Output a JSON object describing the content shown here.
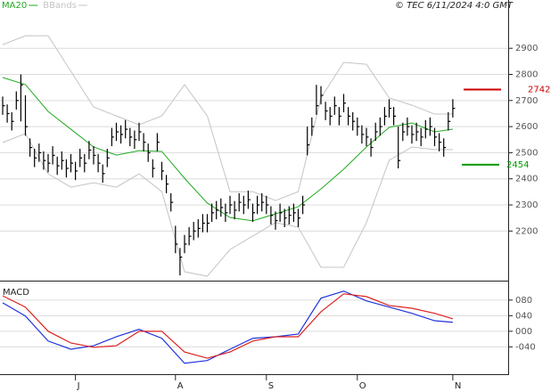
{
  "chart_data": [
    {
      "type": "ohlc",
      "source": "© TEC 6/11/2024 4:0 GMT",
      "color": "#000000",
      "categories": [
        null,
        null,
        null,
        null,
        null,
        null,
        null,
        null,
        null,
        null,
        null,
        null,
        null,
        null,
        null,
        null,
        "J",
        null,
        null,
        null,
        null,
        null,
        null,
        null,
        null,
        null,
        null,
        null,
        null,
        null,
        null,
        null,
        null,
        null,
        null,
        null,
        null,
        null,
        "A",
        null,
        null,
        null,
        null,
        null,
        null,
        null,
        null,
        null,
        null,
        null,
        null,
        null,
        null,
        null,
        null,
        null,
        null,
        null,
        "S",
        null,
        null,
        null,
        null,
        null,
        null,
        null,
        null,
        null,
        null,
        null,
        null,
        null,
        null,
        null,
        null,
        null,
        null,
        null,
        "O",
        null,
        null,
        null,
        null,
        null,
        null,
        null,
        null,
        null,
        null,
        null,
        null,
        null,
        null,
        null,
        null,
        null,
        null,
        null,
        null,
        "N"
      ],
      "high": [
        2715,
        2685,
        2655,
        2735,
        2800,
        2720,
        2555,
        2515,
        2535,
        2505,
        2495,
        2525,
        2485,
        2505,
        2475,
        2495,
        2465,
        2515,
        2495,
        2545,
        2525,
        2495,
        2455,
        2515,
        2595,
        2615,
        2605,
        2625,
        2595,
        2585,
        2615,
        2575,
        2535,
        2475,
        2575,
        2465,
        2415,
        2345,
        2220,
        2135,
        2185,
        2215,
        2235,
        2245,
        2265,
        2265,
        2305,
        2315,
        2325,
        2305,
        2335,
        2315,
        2345,
        2335,
        2355,
        2305,
        2335,
        2345,
        2335,
        2295,
        2275,
        2305,
        2285,
        2295,
        2305,
        2285,
        2335,
        2600,
        2635,
        2760,
        2755,
        2695,
        2675,
        2715,
        2675,
        2725,
        2675,
        2655,
        2635,
        2605,
        2595,
        2555,
        2615,
        2635,
        2675,
        2705,
        2675,
        2600,
        2615,
        2635,
        2605,
        2615,
        2595,
        2625,
        2635,
        2595,
        2575,
        2555,
        2655,
        2705
      ],
      "low": [
        2645,
        2615,
        2585,
        2665,
        2620,
        2565,
        2485,
        2445,
        2465,
        2435,
        2425,
        2455,
        2415,
        2435,
        2405,
        2425,
        2395,
        2445,
        2425,
        2475,
        2455,
        2425,
        2385,
        2445,
        2525,
        2545,
        2535,
        2555,
        2525,
        2515,
        2545,
        2505,
        2465,
        2405,
        2505,
        2395,
        2345,
        2275,
        2115,
        2030,
        2115,
        2145,
        2165,
        2175,
        2195,
        2195,
        2235,
        2245,
        2255,
        2235,
        2265,
        2245,
        2275,
        2265,
        2285,
        2235,
        2265,
        2275,
        2265,
        2225,
        2205,
        2235,
        2215,
        2225,
        2235,
        2215,
        2265,
        2490,
        2565,
        2645,
        2685,
        2625,
        2605,
        2645,
        2605,
        2655,
        2605,
        2585,
        2565,
        2535,
        2525,
        2485,
        2545,
        2565,
        2605,
        2635,
        2605,
        2440,
        2545,
        2565,
        2535,
        2545,
        2525,
        2555,
        2565,
        2525,
        2505,
        2485,
        2585,
        2635
      ],
      "close": [
        2680,
        2650,
        2620,
        2700,
        2760,
        2600,
        2520,
        2480,
        2500,
        2470,
        2460,
        2490,
        2450,
        2470,
        2440,
        2460,
        2430,
        2480,
        2460,
        2510,
        2490,
        2460,
        2420,
        2480,
        2560,
        2580,
        2570,
        2590,
        2560,
        2550,
        2580,
        2540,
        2500,
        2440,
        2540,
        2430,
        2380,
        2310,
        2150,
        2100,
        2150,
        2180,
        2200,
        2210,
        2230,
        2230,
        2270,
        2280,
        2290,
        2270,
        2300,
        2280,
        2310,
        2300,
        2320,
        2270,
        2300,
        2310,
        2300,
        2260,
        2240,
        2270,
        2250,
        2260,
        2270,
        2250,
        2300,
        2530,
        2600,
        2680,
        2720,
        2660,
        2640,
        2680,
        2640,
        2690,
        2640,
        2620,
        2600,
        2570,
        2560,
        2520,
        2580,
        2600,
        2640,
        2670,
        2640,
        2470,
        2580,
        2600,
        2570,
        2580,
        2560,
        2590,
        2600,
        2560,
        2540,
        2520,
        2620,
        2670
      ],
      "lines": {
        "x": [
          0,
          5,
          10,
          15,
          20,
          25,
          30,
          35,
          40,
          45,
          50,
          55,
          60,
          65,
          70,
          75,
          80,
          85,
          90,
          95,
          99
        ],
        "series": [
          {
            "name": "MA20",
            "color": "#22aa22",
            "values": [
              2788,
              2761,
              2658,
              2590,
              2522,
              2491,
              2508,
              2505,
              2402,
              2307,
              2252,
              2239,
              2266,
              2293,
              2361,
              2437,
              2522,
              2597,
              2614,
              2580,
              2590
            ]
          },
          {
            "name": "BBands",
            "color": "#c4c4c4",
            "upper": [
              2914,
              2948,
              2948,
              2812,
              2675,
              2641,
              2607,
              2641,
              2761,
              2641,
              2351,
              2351,
              2317,
              2351,
              2710,
              2846,
              2839,
              2710,
              2682,
              2648,
              2648
            ],
            "lower": [
              2539,
              2573,
              2419,
              2368,
              2385,
              2368,
              2419,
              2351,
              2044,
              2027,
              2129,
              2181,
              2232,
              2215,
              2061,
              2061,
              2232,
              2471,
              2522,
              2512,
              2512
            ]
          }
        ]
      },
      "levels": [
        {
          "value": 2742,
          "color": "#cc0000"
        },
        {
          "value": 2454,
          "color": "#009900"
        }
      ],
      "ylim": [
        2010,
        3085
      ],
      "yticks": [
        2200,
        2300,
        2400,
        2500,
        2600,
        2700,
        2800,
        2900
      ],
      "grid": true
    },
    {
      "type": "line",
      "title": "MACD",
      "x": [
        0,
        5,
        10,
        15,
        20,
        25,
        30,
        35,
        40,
        45,
        50,
        55,
        60,
        65,
        70,
        75,
        80,
        85,
        90,
        95,
        99
      ],
      "series": [
        {
          "color": "#2233dd",
          "values": [
            73,
            39,
            -25,
            -46,
            -37,
            -14,
            5,
            -18,
            -82,
            -75,
            -46,
            -18,
            -14,
            -7,
            85,
            103,
            78,
            62,
            46,
            27,
            23
          ]
        },
        {
          "color": "#dd2222",
          "values": [
            91,
            62,
            0,
            -30,
            -41,
            -37,
            0,
            0,
            -53,
            -69,
            -53,
            -25,
            -14,
            -14,
            50,
            96,
            89,
            66,
            59,
            46,
            32
          ]
        }
      ],
      "ylim": [
        -110,
        123
      ],
      "yticks": [
        {
          "value": -40,
          "label": "-040"
        },
        {
          "value": 0,
          "label": "000"
        },
        {
          "value": 40,
          "label": "040"
        },
        {
          "value": 80,
          "label": "080"
        }
      ],
      "grid": true
    }
  ]
}
